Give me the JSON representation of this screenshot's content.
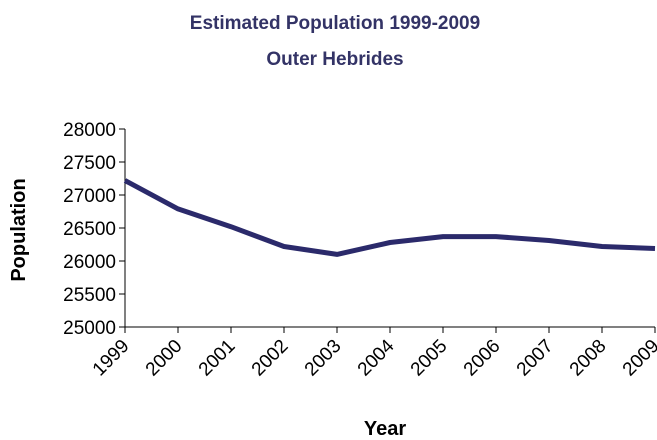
{
  "chart_data": {
    "type": "line",
    "title": "Estimated Population 1999-2009",
    "subtitle": "Outer Hebrides",
    "xlabel": "Year",
    "ylabel": "Population",
    "categories": [
      "1999",
      "2000",
      "2001",
      "2002",
      "2003",
      "2004",
      "2005",
      "2006",
      "2007",
      "2008",
      "2009"
    ],
    "series": [
      {
        "values": [
          27220,
          26790,
          26520,
          26220,
          26100,
          26280,
          26370,
          26370,
          26310,
          26220,
          26190
        ]
      }
    ],
    "ylim": [
      25000,
      28000
    ],
    "yticks": [
      "25000",
      "25500",
      "26000",
      "26500",
      "27000",
      "27500",
      "28000"
    ],
    "grid": false,
    "legend": "none",
    "colors": {
      "title": "#333366",
      "line": "#2b2a6b",
      "axis": "#000000",
      "text": "#000000"
    }
  }
}
